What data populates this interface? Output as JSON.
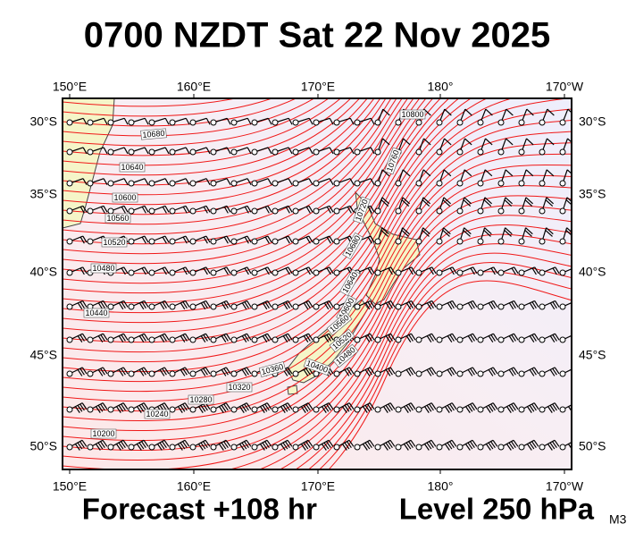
{
  "title": "0700 NZDT Sat 22 Nov 2025",
  "footer": {
    "forecast": "Forecast +108 hr",
    "level": "Level 250 hPa",
    "model": "M3"
  },
  "map": {
    "lon_labels": [
      "150°E",
      "160°E",
      "170°E",
      "180°",
      "170°W"
    ],
    "lat_labels": [
      "30°S",
      "35°S",
      "40°S",
      "45°S",
      "50°S"
    ],
    "contour_labels": [
      "10800",
      "10760",
      "10720",
      "10680",
      "10680",
      "10640",
      "10640",
      "10600",
      "10600",
      "10560",
      "10560",
      "10520",
      "10520",
      "10480",
      "10480",
      "10440",
      "10400",
      "10360",
      "10320",
      "10280",
      "10240",
      "10200"
    ]
  }
}
